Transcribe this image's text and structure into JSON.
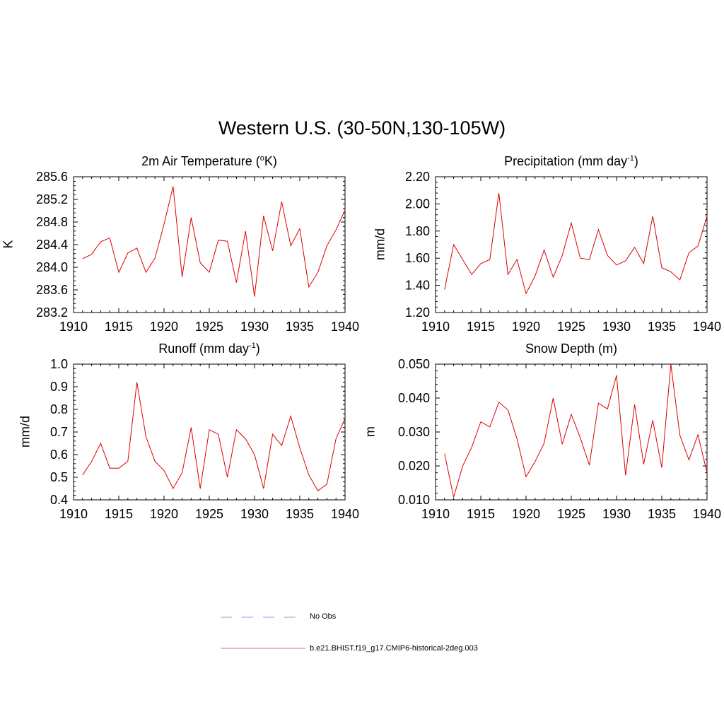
{
  "title": "Western U.S. (30-50N,130-105W)",
  "legend": [
    {
      "label": "No Obs",
      "color": "#aaaaee",
      "style": "dashed"
    },
    {
      "label": "b.e21.BHIST.f19_g17.CMIP6-historical-2deg.003",
      "color": "#ee5555",
      "style": "solid"
    }
  ],
  "chart_data": [
    {
      "type": "line",
      "title": "2m Air Temperature (",
      "title_sup": "o",
      "title_after": "K)",
      "ylabel": "K",
      "xlim": [
        1910,
        1940
      ],
      "ylim": [
        283.2,
        285.6
      ],
      "xticks": [
        1910,
        1915,
        1920,
        1925,
        1930,
        1935,
        1940
      ],
      "xtick_labels": [
        "1910",
        "1915",
        "1920",
        "1925",
        "1930",
        "1935",
        "1940"
      ],
      "yticks": [
        283.2,
        283.6,
        284.0,
        284.4,
        284.8,
        285.2,
        285.6
      ],
      "ytick_labels": [
        "283.2",
        "283.6",
        "284.0",
        "284.4",
        "284.8",
        "285.2",
        "285.6"
      ],
      "color": "#dd0000",
      "x": [
        1911,
        1912,
        1913,
        1914,
        1915,
        1916,
        1917,
        1918,
        1919,
        1920,
        1921,
        1922,
        1923,
        1924,
        1925,
        1926,
        1927,
        1928,
        1929,
        1930,
        1931,
        1932,
        1933,
        1934,
        1935,
        1936,
        1937,
        1938,
        1939,
        1940
      ],
      "values": [
        284.15,
        284.23,
        284.45,
        284.52,
        283.91,
        284.25,
        284.34,
        283.91,
        284.16,
        284.76,
        285.43,
        283.83,
        284.88,
        284.08,
        283.91,
        284.48,
        284.46,
        283.73,
        284.64,
        283.48,
        284.91,
        284.29,
        285.16,
        284.38,
        284.68,
        283.65,
        283.91,
        284.38,
        284.66,
        285.01
      ]
    },
    {
      "type": "line",
      "title": "Precipitation (mm day",
      "title_sup": "-1",
      "title_after": ")",
      "ylabel": "mm/d",
      "xlim": [
        1910,
        1940
      ],
      "ylim": [
        1.2,
        2.2
      ],
      "xticks": [
        1910,
        1915,
        1920,
        1925,
        1930,
        1935,
        1940
      ],
      "xtick_labels": [
        "1910",
        "1915",
        "1920",
        "1925",
        "1930",
        "1935",
        "1940"
      ],
      "yticks": [
        1.2,
        1.4,
        1.6,
        1.8,
        2.0,
        2.2
      ],
      "ytick_labels": [
        "1.20",
        "1.40",
        "1.60",
        "1.80",
        "2.00",
        "2.20"
      ],
      "color": "#dd0000",
      "x": [
        1911,
        1912,
        1913,
        1914,
        1915,
        1916,
        1917,
        1918,
        1919,
        1920,
        1921,
        1922,
        1923,
        1924,
        1925,
        1926,
        1927,
        1928,
        1929,
        1930,
        1931,
        1932,
        1933,
        1934,
        1935,
        1936,
        1937,
        1938,
        1939,
        1940
      ],
      "values": [
        1.37,
        1.7,
        1.59,
        1.48,
        1.56,
        1.59,
        2.08,
        1.48,
        1.59,
        1.34,
        1.47,
        1.66,
        1.46,
        1.62,
        1.86,
        1.6,
        1.59,
        1.81,
        1.62,
        1.55,
        1.58,
        1.68,
        1.56,
        1.91,
        1.53,
        1.5,
        1.44,
        1.64,
        1.69,
        1.91
      ]
    },
    {
      "type": "line",
      "title": "Runoff (mm day",
      "title_sup": "-1",
      "title_after": ")",
      "ylabel": "mm/d",
      "xlim": [
        1910,
        1940
      ],
      "ylim": [
        0.4,
        1.0
      ],
      "xticks": [
        1910,
        1915,
        1920,
        1925,
        1930,
        1935,
        1940
      ],
      "xtick_labels": [
        "1910",
        "1915",
        "1920",
        "1925",
        "1930",
        "1935",
        "1940"
      ],
      "yticks": [
        0.4,
        0.5,
        0.6,
        0.7,
        0.8,
        0.9,
        1.0
      ],
      "ytick_labels": [
        "0.4",
        "0.5",
        "0.6",
        "0.7",
        "0.8",
        "0.9",
        "1.0"
      ],
      "color": "#dd0000",
      "x": [
        1911,
        1912,
        1913,
        1914,
        1915,
        1916,
        1917,
        1918,
        1919,
        1920,
        1921,
        1922,
        1923,
        1924,
        1925,
        1926,
        1927,
        1928,
        1929,
        1930,
        1931,
        1932,
        1933,
        1934,
        1935,
        1936,
        1937,
        1938,
        1939,
        1940
      ],
      "values": [
        0.51,
        0.57,
        0.65,
        0.54,
        0.54,
        0.57,
        0.92,
        0.68,
        0.57,
        0.53,
        0.45,
        0.52,
        0.72,
        0.45,
        0.71,
        0.69,
        0.5,
        0.71,
        0.67,
        0.6,
        0.45,
        0.69,
        0.64,
        0.77,
        0.63,
        0.51,
        0.44,
        0.47,
        0.67,
        0.76
      ]
    },
    {
      "type": "line",
      "title": "Snow Depth (m)",
      "title_sup": "",
      "title_after": "",
      "ylabel": "m",
      "xlim": [
        1910,
        1940
      ],
      "ylim": [
        0.01,
        0.05
      ],
      "xticks": [
        1910,
        1915,
        1920,
        1925,
        1930,
        1935,
        1940
      ],
      "xtick_labels": [
        "1910",
        "1915",
        "1920",
        "1925",
        "1930",
        "1935",
        "1940"
      ],
      "yticks": [
        0.01,
        0.02,
        0.03,
        0.04,
        0.05
      ],
      "ytick_labels": [
        "0.010",
        "0.020",
        "0.030",
        "0.040",
        "0.050"
      ],
      "color": "#dd0000",
      "x": [
        1911,
        1912,
        1913,
        1914,
        1915,
        1916,
        1917,
        1918,
        1919,
        1920,
        1921,
        1922,
        1923,
        1924,
        1925,
        1926,
        1927,
        1928,
        1929,
        1930,
        1931,
        1932,
        1933,
        1934,
        1935,
        1936,
        1937,
        1938,
        1939,
        1940
      ],
      "values": [
        0.0236,
        0.0108,
        0.02,
        0.0255,
        0.033,
        0.0315,
        0.0388,
        0.0365,
        0.028,
        0.0168,
        0.0213,
        0.0267,
        0.04,
        0.0264,
        0.0352,
        0.0282,
        0.0202,
        0.0385,
        0.0368,
        0.0467,
        0.0172,
        0.0381,
        0.0205,
        0.0335,
        0.0195,
        0.05,
        0.029,
        0.0218,
        0.0292,
        0.018
      ]
    }
  ]
}
